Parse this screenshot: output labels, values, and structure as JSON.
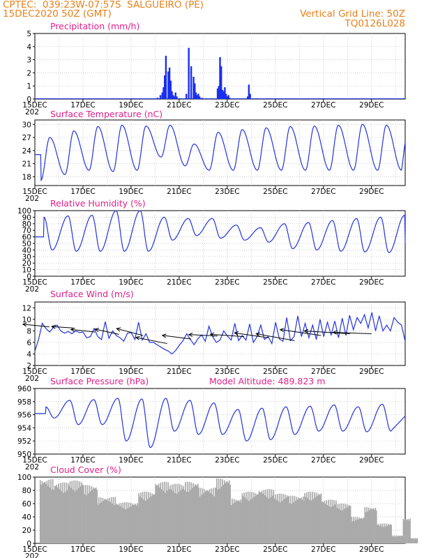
{
  "header": {
    "line1": "CPTEC:  039:23W-07:57S  SALGUEIRO (PE)",
    "line2": "15DEC2020 50Z (GMT)",
    "right1": "Vertical Grid Line: 50Z",
    "right2": "TQ0126L028"
  },
  "x_ticks": [
    "15DEC",
    "17DEC",
    "19DEC",
    "21DEC",
    "23DEC",
    "25DEC",
    "27DEC",
    "29DEC"
  ],
  "x_sub": "202",
  "colors": {
    "line": "#2233dd",
    "bar_precip": "#1a2fee",
    "cloud": "#aaaaaa",
    "title": "#e0208a",
    "header": "#e8801a",
    "grid": "#bbbbbb"
  },
  "chart_data": [
    {
      "type": "bar",
      "title": "Precipitation (mm/h)",
      "ylim": [
        0,
        5
      ],
      "yticks": [
        0,
        1,
        2,
        3,
        4,
        5
      ],
      "x_days": [
        5.1,
        5.22,
        5.3,
        5.35,
        5.4,
        5.45,
        5.55,
        5.6,
        5.65,
        5.7,
        5.75,
        5.8,
        5.85,
        5.9,
        6.3,
        6.4,
        6.5,
        6.6,
        6.65,
        6.7,
        6.75,
        6.8,
        6.85,
        6.95,
        7.6,
        7.65,
        7.7,
        7.75,
        7.8,
        7.85,
        7.9,
        7.95,
        8.0,
        8.05,
        8.1,
        8.85,
        8.9,
        8.95
      ],
      "values": [
        0.1,
        0.3,
        0.5,
        0.9,
        1.8,
        3.3,
        2.1,
        2.4,
        1.4,
        0.6,
        0.3,
        0.2,
        0.5,
        0.2,
        0.4,
        3.9,
        2.5,
        1.7,
        1.2,
        0.5,
        0.3,
        0.4,
        0.2,
        0.1,
        0.8,
        1.0,
        3.2,
        2.5,
        0.7,
        0.6,
        0.9,
        0.4,
        0.2,
        0.3,
        0.1,
        0.2,
        1.1,
        0.4
      ]
    },
    {
      "type": "line",
      "title": "Surface Temperature (nC)",
      "ylim": [
        16,
        31
      ],
      "yticks": [
        18,
        21,
        24,
        27,
        30
      ],
      "daily_max": [
        27,
        28.5,
        29.5,
        29.8,
        29.6,
        29.8,
        25.5,
        28.2,
        28.8,
        29.2,
        29.5,
        29.6,
        29.8,
        30.0,
        29.8,
        30.1,
        29.8
      ],
      "daily_min": [
        17.2,
        18.5,
        19.5,
        19.2,
        19.5,
        22.5,
        20.5,
        19.5,
        19.5,
        19.5,
        19.5,
        19.5,
        19.5,
        19.5,
        19.5,
        19.5,
        19.6
      ],
      "end_value": 26
    },
    {
      "type": "line",
      "title": "Relative Humidity (%)",
      "ylim": [
        0,
        100
      ],
      "yticks": [
        0,
        10,
        20,
        30,
        40,
        50,
        60,
        70,
        80,
        90,
        100
      ],
      "daily_max": [
        90,
        92,
        93,
        100,
        100,
        90,
        88,
        88,
        78,
        74,
        80,
        82,
        85,
        88,
        90,
        93,
        90
      ],
      "daily_min": [
        40,
        38,
        38,
        38,
        38,
        55,
        62,
        58,
        55,
        52,
        42,
        40,
        38,
        37,
        36,
        36,
        35
      ],
      "end_value": 50
    },
    {
      "type": "line",
      "title": "Surface Wind (m/s)",
      "ylim": [
        2,
        13
      ],
      "yticks": [
        2,
        4,
        6,
        8,
        10,
        12
      ],
      "speed": [
        4.5,
        6.5,
        9.3,
        8.4,
        7.8,
        8.6,
        9.0,
        8.0,
        7.6,
        7.9,
        7.5,
        8.0,
        7.7,
        7.8,
        6.8,
        7.0,
        8.4,
        7.0,
        6.5,
        9.6,
        6.7,
        8.0,
        7.2,
        6.8,
        6.2,
        7.6,
        7.7,
        6.5,
        9.5,
        6.4,
        7.5,
        6.0,
        6.0,
        5.6,
        5.2,
        4.8,
        4.5,
        4.0,
        4.6,
        5.5,
        6.3,
        7.5,
        6.5,
        5.6,
        6.6,
        7.3,
        6.2,
        8.8,
        7.0,
        6.0,
        6.4,
        8.0,
        7.1,
        6.4,
        9.3,
        6.3,
        7.2,
        6.4,
        9.2,
        6.0,
        7.0,
        9.0,
        6.5,
        7.0,
        5.8,
        9.5,
        6.6,
        6.2,
        10.3,
        6.3,
        7.0,
        10.6,
        7.0,
        9.3,
        6.8,
        9.0,
        6.5,
        10.0,
        7.0,
        9.5,
        7.3,
        9.7,
        6.8,
        10.2,
        7.2,
        10.7,
        8.2,
        10.3,
        9.3,
        10.8,
        8.5,
        11.2,
        8.0,
        10.6,
        8.0,
        9.0,
        8.0,
        10.3,
        9.5,
        9.0,
        6.2
      ]
    },
    {
      "type": "line",
      "title": "Surface Pressure (hPa)",
      "annotation": "Model Altitude: 489.823 m",
      "ylim": [
        950,
        960
      ],
      "yticks": [
        950,
        952,
        954,
        956,
        958,
        960
      ],
      "daily_max": [
        957.2,
        958.2,
        958.3,
        958.5,
        958.4,
        958.5,
        958.2,
        957.8,
        956.8,
        957.0,
        957.2,
        957.3,
        957.5,
        957.2,
        957.6,
        958.2,
        958.5,
        958.8
      ],
      "daily_min": [
        955.5,
        954.5,
        954.5,
        952.0,
        951.0,
        953.5,
        953.0,
        953.0,
        952.0,
        952.2,
        953.0,
        953.5,
        953.5,
        953.4,
        953.5,
        953.8,
        953.5,
        954.0
      ],
      "end_value": 955.8
    },
    {
      "type": "bar",
      "title": "Cloud Cover (%)",
      "ylim": [
        0,
        100
      ],
      "yticks": [
        0,
        20,
        40,
        60,
        80,
        100
      ],
      "segments_days": [
        [
          0.2,
          0.8,
          97
        ],
        [
          0.8,
          1.4,
          92
        ],
        [
          1.4,
          2.0,
          95
        ],
        [
          2.0,
          2.6,
          88
        ],
        [
          2.6,
          3.4,
          70
        ],
        [
          3.4,
          4.3,
          62
        ],
        [
          4.3,
          5.0,
          78
        ],
        [
          5.0,
          5.6,
          93
        ],
        [
          5.6,
          6.2,
          90
        ],
        [
          6.2,
          6.8,
          93
        ],
        [
          6.8,
          7.5,
          84
        ],
        [
          7.5,
          8.1,
          98
        ],
        [
          8.1,
          8.6,
          68
        ],
        [
          8.6,
          9.3,
          78
        ],
        [
          9.3,
          9.9,
          82
        ],
        [
          9.9,
          10.5,
          75
        ],
        [
          10.5,
          11.2,
          72
        ],
        [
          11.2,
          11.9,
          78
        ],
        [
          11.9,
          12.5,
          66
        ],
        [
          12.5,
          13.1,
          60
        ],
        [
          13.1,
          13.7,
          40
        ],
        [
          13.7,
          14.2,
          55
        ],
        [
          14.2,
          14.8,
          30
        ],
        [
          14.8,
          15.3,
          12
        ],
        [
          15.3,
          15.6,
          38
        ],
        [
          15.6,
          15.9,
          8
        ]
      ]
    }
  ]
}
